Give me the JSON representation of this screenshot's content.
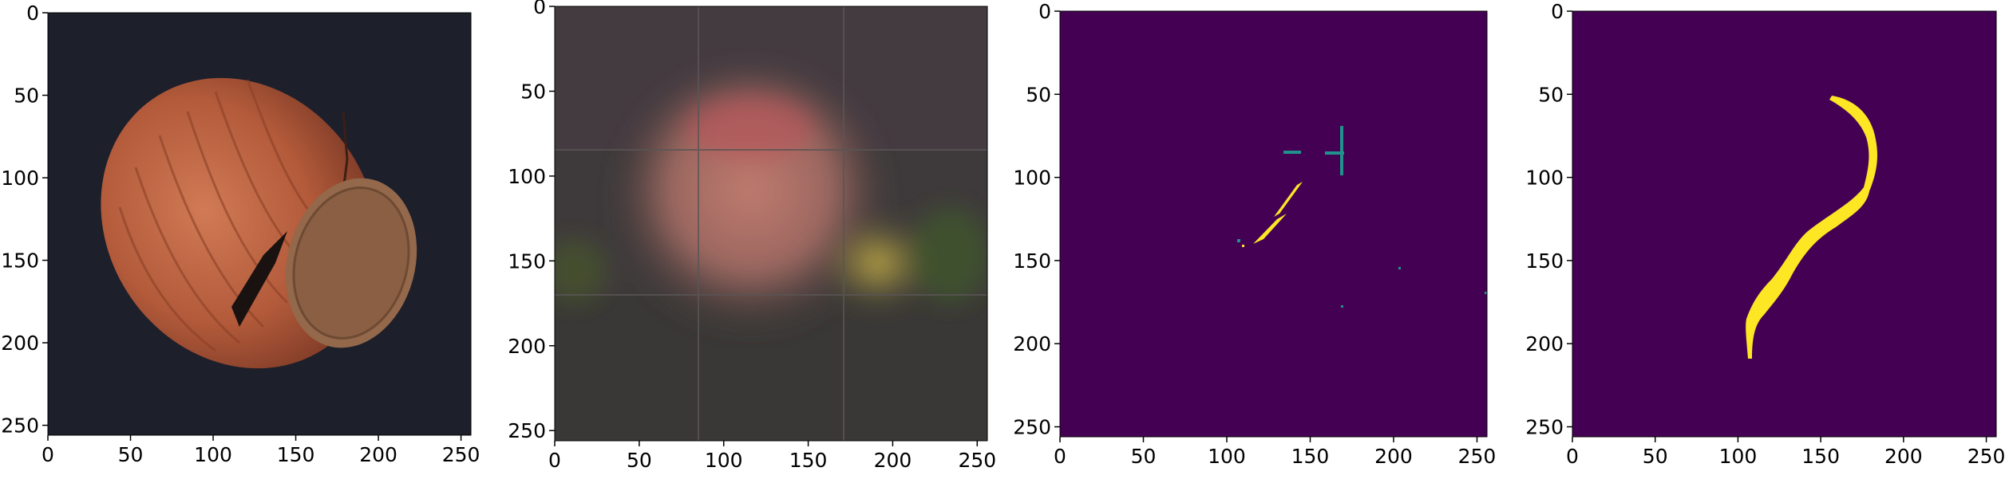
{
  "panels": [
    {
      "id": "original",
      "content": "hazelnut-photo",
      "x_ticks": [
        "0",
        "50",
        "100",
        "150",
        "200",
        "250"
      ],
      "y_ticks": [
        "0",
        "50",
        "100",
        "150",
        "200",
        "250"
      ]
    },
    {
      "id": "reconstruction",
      "content": "blurred-reconstruction",
      "x_ticks": [
        "0",
        "50",
        "100",
        "150",
        "200",
        "250"
      ],
      "y_ticks": [
        "0",
        "50",
        "100",
        "150",
        "200",
        "250"
      ]
    },
    {
      "id": "predicted-mask",
      "content": "predicted-anomaly-mask",
      "x_ticks": [
        "0",
        "50",
        "100",
        "150",
        "200",
        "250"
      ],
      "y_ticks": [
        "0",
        "50",
        "100",
        "150",
        "200",
        "250"
      ]
    },
    {
      "id": "ground-truth-mask",
      "content": "ground-truth-mask",
      "x_ticks": [
        "0",
        "50",
        "100",
        "150",
        "200",
        "250"
      ],
      "y_ticks": [
        "0",
        "50",
        "100",
        "150",
        "200",
        "250"
      ]
    }
  ],
  "axis_range": [
    0,
    256
  ],
  "colors": {
    "mask_background": "#440154",
    "mask_foreground": "#fde725",
    "mask_edge": "#21918c",
    "photo_background": "#1d1f2b",
    "nut_shell": "#b5593b",
    "nut_cap": "#94684a"
  }
}
